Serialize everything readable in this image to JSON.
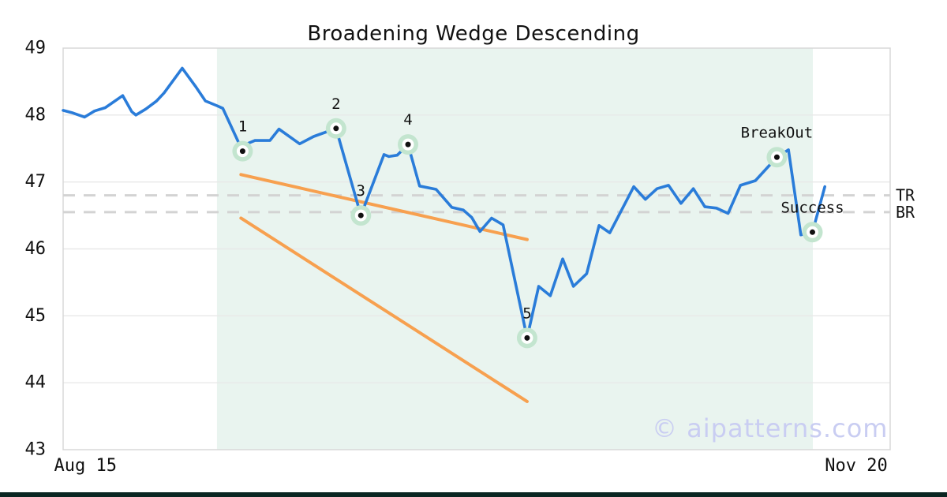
{
  "title": "Broadening Wedge Descending",
  "watermark": "© aipatterns.com",
  "colors": {
    "price_line": "#2a7cd9",
    "trend_line": "#f7a04f",
    "shade": "#e9f4ef",
    "marker_halo": "#c3e5cf",
    "marker_ring": "#ffffff",
    "marker_dot": "#111111",
    "dashed_level": "#d3d3d3",
    "grid": "#e8e8e8",
    "border": "#d8d8d8",
    "watermark": "#c9cdf2",
    "bottom_bar": "#0a2622",
    "text": "#111111"
  },
  "chart_data": {
    "type": "line",
    "title": "Broadening Wedge Descending",
    "xlabel": "",
    "ylabel": "",
    "ylim": [
      43,
      49
    ],
    "grid": "horizontal",
    "grid_values": [
      48,
      47,
      46,
      45,
      44
    ],
    "y_ticks": [
      {
        "label": "49",
        "value": 49
      },
      {
        "label": "48",
        "value": 48
      },
      {
        "label": "47",
        "value": 47
      },
      {
        "label": "46",
        "value": 46
      },
      {
        "label": "45",
        "value": 45
      },
      {
        "label": "44",
        "value": 44
      },
      {
        "label": "43",
        "value": 43
      }
    ],
    "x_ticks": [
      {
        "label": "Aug 15",
        "f": 0.027
      },
      {
        "label": "Nov 20",
        "f": 0.959
      }
    ],
    "levels": [
      {
        "label": "TR",
        "value": 46.8
      },
      {
        "label": "BR",
        "value": 46.55
      }
    ],
    "shade_region": {
      "from": 0.186,
      "to": 0.9065
    },
    "series": [
      {
        "name": "price",
        "points": [
          [
            0.0,
            48.07
          ],
          [
            0.012,
            48.03
          ],
          [
            0.026,
            47.97
          ],
          [
            0.038,
            48.06
          ],
          [
            0.051,
            48.11
          ],
          [
            0.072,
            48.29
          ],
          [
            0.083,
            48.05
          ],
          [
            0.088,
            48.0
          ],
          [
            0.1,
            48.09
          ],
          [
            0.113,
            48.21
          ],
          [
            0.122,
            48.33
          ],
          [
            0.144,
            48.7
          ],
          [
            0.16,
            48.43
          ],
          [
            0.172,
            48.21
          ],
          [
            0.186,
            48.14
          ],
          [
            0.193,
            48.1
          ],
          [
            0.217,
            47.46
          ],
          [
            0.224,
            47.58
          ],
          [
            0.232,
            47.62
          ],
          [
            0.25,
            47.62
          ],
          [
            0.261,
            47.79
          ],
          [
            0.286,
            47.57
          ],
          [
            0.303,
            47.68
          ],
          [
            0.33,
            47.8
          ],
          [
            0.36,
            46.5
          ],
          [
            0.388,
            47.41
          ],
          [
            0.394,
            47.38
          ],
          [
            0.404,
            47.4
          ],
          [
            0.417,
            47.56
          ],
          [
            0.431,
            46.94
          ],
          [
            0.451,
            46.89
          ],
          [
            0.47,
            46.62
          ],
          [
            0.484,
            46.58
          ],
          [
            0.494,
            46.47
          ],
          [
            0.504,
            46.26
          ],
          [
            0.518,
            46.46
          ],
          [
            0.532,
            46.36
          ],
          [
            0.561,
            44.67
          ],
          [
            0.575,
            45.44
          ],
          [
            0.589,
            45.3
          ],
          [
            0.604,
            45.85
          ],
          [
            0.617,
            45.44
          ],
          [
            0.633,
            45.63
          ],
          [
            0.648,
            46.35
          ],
          [
            0.661,
            46.24
          ],
          [
            0.69,
            46.93
          ],
          [
            0.704,
            46.74
          ],
          [
            0.718,
            46.9
          ],
          [
            0.732,
            46.95
          ],
          [
            0.747,
            46.68
          ],
          [
            0.762,
            46.9
          ],
          [
            0.776,
            46.63
          ],
          [
            0.79,
            46.61
          ],
          [
            0.804,
            46.53
          ],
          [
            0.819,
            46.95
          ],
          [
            0.837,
            47.02
          ],
          [
            0.863,
            47.37
          ],
          [
            0.877,
            47.48
          ],
          [
            0.892,
            46.21
          ],
          [
            0.906,
            46.25
          ],
          [
            0.921,
            46.93
          ]
        ]
      }
    ],
    "trendlines": [
      {
        "name": "upper-wedge-line",
        "from": [
          0.215,
          47.11
        ],
        "to": [
          0.561,
          46.14
        ]
      },
      {
        "name": "lower-wedge-line",
        "from": [
          0.215,
          46.46
        ],
        "to": [
          0.561,
          43.72
        ]
      }
    ],
    "markers": [
      {
        "label": "1",
        "f": 0.217,
        "value": 47.46
      },
      {
        "label": "2",
        "f": 0.33,
        "value": 47.8
      },
      {
        "label": "3",
        "f": 0.36,
        "value": 46.5
      },
      {
        "label": "4",
        "f": 0.417,
        "value": 47.56
      },
      {
        "label": "5",
        "f": 0.561,
        "value": 44.67
      },
      {
        "label": "BreakOut",
        "f": 0.863,
        "value": 47.37
      },
      {
        "label": "Success",
        "f": 0.906,
        "value": 46.25
      }
    ],
    "legend": "none"
  }
}
